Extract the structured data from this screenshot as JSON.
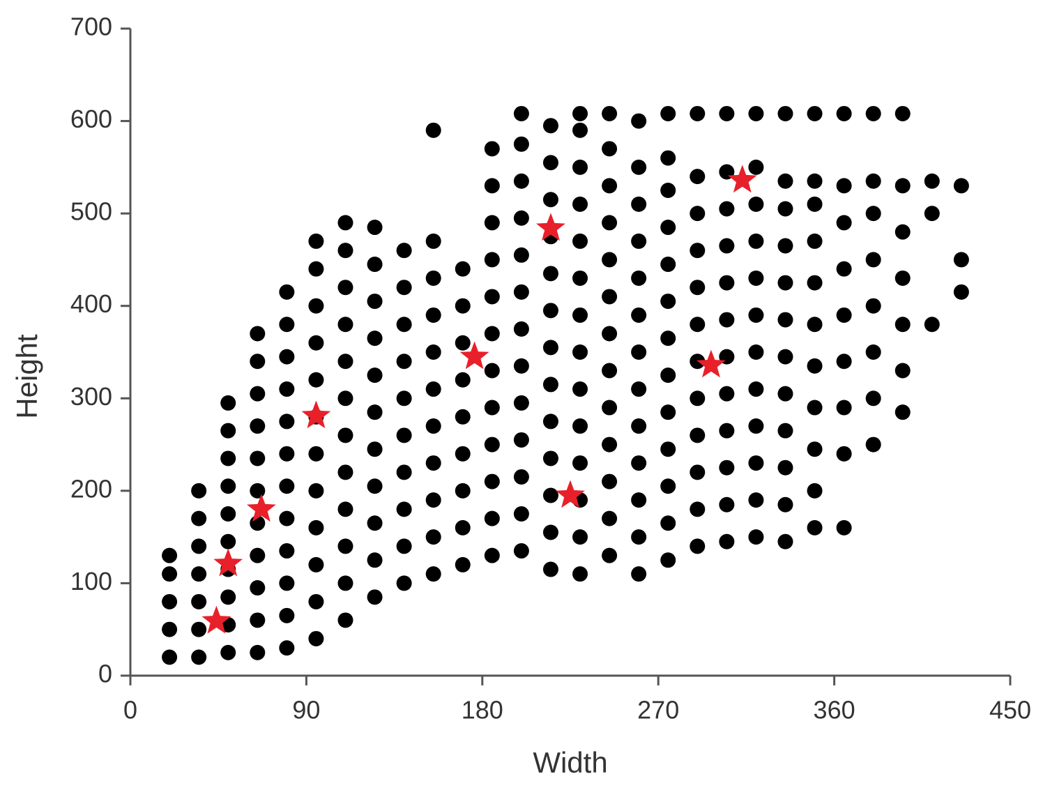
{
  "chart_data": {
    "type": "scatter",
    "x_label": "Width",
    "y_label": "Height",
    "xlim": [
      0,
      450
    ],
    "xticks": [
      0,
      90,
      180,
      270,
      360,
      450
    ],
    "ylim": [
      0,
      700
    ],
    "yticks": [
      0,
      100,
      200,
      300,
      400,
      500,
      600,
      700
    ],
    "grid": false,
    "series": [
      {
        "color": "#000000",
        "marker": "circle",
        "x": [
          20,
          20,
          20,
          20,
          20,
          35,
          35,
          35,
          35,
          35,
          35,
          35,
          50,
          50,
          50,
          50,
          50,
          50,
          50,
          50,
          50,
          50,
          65,
          65,
          65,
          65,
          65,
          65,
          65,
          65,
          65,
          65,
          65,
          80,
          80,
          80,
          80,
          80,
          80,
          80,
          80,
          80,
          80,
          80,
          80,
          95,
          95,
          95,
          95,
          95,
          95,
          95,
          95,
          95,
          95,
          95,
          95,
          110,
          110,
          110,
          110,
          110,
          110,
          110,
          110,
          110,
          110,
          110,
          110,
          125,
          125,
          125,
          125,
          125,
          125,
          125,
          125,
          125,
          125,
          125,
          140,
          140,
          140,
          140,
          140,
          140,
          140,
          140,
          140,
          140,
          155,
          155,
          155,
          155,
          155,
          155,
          155,
          155,
          155,
          155,
          155,
          170,
          170,
          170,
          170,
          170,
          170,
          170,
          170,
          170,
          185,
          185,
          185,
          185,
          185,
          185,
          185,
          185,
          185,
          185,
          185,
          185,
          200,
          200,
          200,
          200,
          200,
          200,
          200,
          200,
          200,
          200,
          200,
          200,
          200,
          215,
          215,
          215,
          215,
          215,
          215,
          215,
          215,
          215,
          215,
          215,
          215,
          215,
          230,
          230,
          230,
          230,
          230,
          230,
          230,
          230,
          230,
          230,
          230,
          230,
          230,
          230,
          245,
          245,
          245,
          245,
          245,
          245,
          245,
          245,
          245,
          245,
          245,
          245,
          245,
          260,
          260,
          260,
          260,
          260,
          260,
          260,
          260,
          260,
          260,
          260,
          260,
          260,
          275,
          275,
          275,
          275,
          275,
          275,
          275,
          275,
          275,
          275,
          275,
          275,
          275,
          290,
          290,
          290,
          290,
          290,
          290,
          290,
          290,
          290,
          290,
          290,
          290,
          305,
          305,
          305,
          305,
          305,
          305,
          305,
          305,
          305,
          305,
          305,
          305,
          320,
          320,
          320,
          320,
          320,
          320,
          320,
          320,
          320,
          320,
          320,
          320,
          335,
          335,
          335,
          335,
          335,
          335,
          335,
          335,
          335,
          335,
          335,
          335,
          350,
          350,
          350,
          350,
          350,
          350,
          350,
          350,
          350,
          350,
          350,
          365,
          365,
          365,
          365,
          365,
          365,
          365,
          365,
          365,
          380,
          380,
          380,
          380,
          380,
          380,
          380,
          380,
          395,
          395,
          395,
          395,
          395,
          395,
          395,
          410,
          410,
          410,
          425,
          425,
          425
        ],
        "values": [
          20,
          50,
          80,
          110,
          130,
          20,
          50,
          80,
          110,
          140,
          170,
          200,
          25,
          55,
          85,
          115,
          145,
          175,
          205,
          235,
          265,
          295,
          25,
          60,
          95,
          130,
          165,
          200,
          235,
          270,
          305,
          340,
          370,
          30,
          65,
          100,
          135,
          170,
          205,
          240,
          275,
          310,
          345,
          380,
          415,
          40,
          80,
          120,
          160,
          200,
          240,
          280,
          320,
          360,
          400,
          440,
          470,
          60,
          100,
          140,
          180,
          220,
          260,
          300,
          340,
          380,
          420,
          460,
          490,
          85,
          125,
          165,
          205,
          245,
          285,
          325,
          365,
          405,
          445,
          485,
          100,
          140,
          180,
          220,
          260,
          300,
          340,
          380,
          420,
          460,
          110,
          150,
          190,
          230,
          270,
          310,
          350,
          390,
          430,
          470,
          590,
          120,
          160,
          200,
          240,
          280,
          320,
          360,
          400,
          440,
          130,
          170,
          210,
          250,
          290,
          330,
          370,
          410,
          450,
          490,
          530,
          570,
          135,
          175,
          215,
          255,
          295,
          335,
          375,
          415,
          455,
          495,
          535,
          575,
          608,
          115,
          155,
          195,
          235,
          275,
          315,
          355,
          395,
          435,
          475,
          515,
          555,
          595,
          110,
          150,
          190,
          230,
          270,
          310,
          350,
          390,
          430,
          470,
          510,
          550,
          590,
          608,
          130,
          170,
          210,
          250,
          290,
          330,
          370,
          410,
          450,
          490,
          530,
          570,
          608,
          110,
          150,
          190,
          230,
          270,
          310,
          350,
          390,
          430,
          470,
          510,
          550,
          600,
          125,
          165,
          205,
          245,
          285,
          325,
          365,
          405,
          445,
          485,
          525,
          560,
          608,
          140,
          180,
          220,
          260,
          300,
          340,
          380,
          420,
          460,
          500,
          540,
          608,
          145,
          185,
          225,
          265,
          305,
          345,
          385,
          425,
          465,
          505,
          545,
          608,
          150,
          190,
          230,
          270,
          310,
          350,
          390,
          430,
          470,
          510,
          550,
          608,
          145,
          185,
          225,
          265,
          305,
          345,
          385,
          425,
          465,
          505,
          535,
          608,
          160,
          200,
          245,
          290,
          335,
          380,
          425,
          470,
          510,
          535,
          608,
          160,
          240,
          290,
          340,
          390,
          440,
          490,
          530,
          608,
          250,
          300,
          350,
          400,
          450,
          500,
          535,
          608,
          285,
          330,
          380,
          430,
          480,
          530,
          608,
          380,
          500,
          535,
          415,
          450,
          530
        ]
      },
      {
        "color": "#e8202a",
        "marker": "star",
        "x": [
          44,
          50,
          67,
          95,
          176,
          215,
          225,
          297,
          313
        ],
        "values": [
          59,
          121,
          180,
          281,
          345,
          484,
          195,
          336,
          536
        ]
      }
    ]
  }
}
